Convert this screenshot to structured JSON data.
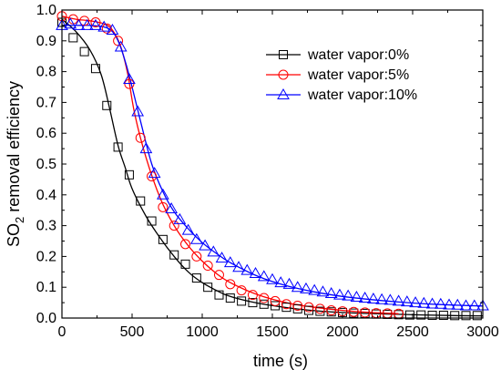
{
  "chart_data": {
    "type": "line",
    "xlabel": "time (s)",
    "ylabel_main": "SO",
    "ylabel_sub": "2",
    "ylabel_rest": " removal efficiency",
    "xlim": [
      0,
      3000
    ],
    "ylim": [
      0.0,
      1.0
    ],
    "xticks": [
      0,
      500,
      1000,
      1500,
      2000,
      2500,
      3000
    ],
    "yticks": [
      0.0,
      0.1,
      0.2,
      0.3,
      0.4,
      0.5,
      0.6,
      0.7,
      0.8,
      0.9,
      1.0
    ],
    "ytick_labels": [
      "0.0",
      "0.1",
      "0.2",
      "0.3",
      "0.4",
      "0.5",
      "0.6",
      "0.7",
      "0.8",
      "0.9",
      "1.0"
    ],
    "legend_position": "top-right",
    "series": [
      {
        "name": "water vapor:0%",
        "color": "#000000",
        "marker": "square",
        "x": [
          0,
          80,
          160,
          240,
          320,
          400,
          480,
          560,
          640,
          720,
          800,
          880,
          960,
          1040,
          1120,
          1200,
          1280,
          1360,
          1440,
          1520,
          1600,
          1680,
          1760,
          1840,
          1920,
          2000,
          2080,
          2160,
          2240,
          2320,
          2400,
          2480,
          2560,
          2640,
          2720,
          2800,
          2880,
          2960
        ],
        "y": [
          0.96,
          0.91,
          0.865,
          0.81,
          0.69,
          0.555,
          0.465,
          0.38,
          0.315,
          0.255,
          0.205,
          0.175,
          0.13,
          0.1,
          0.075,
          0.065,
          0.055,
          0.05,
          0.045,
          0.04,
          0.035,
          0.03,
          0.025,
          0.022,
          0.02,
          0.018,
          0.016,
          0.015,
          0.013,
          0.012,
          0.011,
          0.01,
          0.01,
          0.009,
          0.009,
          0.008,
          0.008,
          0.008
        ],
        "curve_x": [
          0,
          100,
          200,
          280,
          340,
          400,
          450,
          500,
          600,
          700,
          800,
          900,
          1000,
          1100,
          1200,
          1400,
          1600,
          1800,
          2000,
          2400,
          2800,
          3000
        ],
        "curve_y": [
          0.97,
          0.93,
          0.87,
          0.79,
          0.68,
          0.56,
          0.49,
          0.42,
          0.33,
          0.26,
          0.2,
          0.15,
          0.115,
          0.09,
          0.07,
          0.048,
          0.034,
          0.024,
          0.018,
          0.012,
          0.008,
          0.007
        ]
      },
      {
        "name": "water vapor:5%",
        "color": "#ff0000",
        "marker": "circle",
        "x": [
          0,
          80,
          160,
          240,
          320,
          400,
          480,
          560,
          640,
          720,
          800,
          880,
          960,
          1040,
          1120,
          1200,
          1280,
          1360,
          1440,
          1520,
          1600,
          1680,
          1760,
          1840,
          1920,
          2000,
          2080,
          2160,
          2240,
          2320,
          2400
        ],
        "y": [
          0.98,
          0.97,
          0.965,
          0.96,
          0.94,
          0.9,
          0.76,
          0.585,
          0.46,
          0.36,
          0.3,
          0.24,
          0.2,
          0.17,
          0.14,
          0.11,
          0.09,
          0.075,
          0.065,
          0.055,
          0.045,
          0.04,
          0.035,
          0.03,
          0.025,
          0.022,
          0.02,
          0.018,
          0.016,
          0.015,
          0.014
        ],
        "curve_x": [
          0,
          100,
          200,
          300,
          360,
          420,
          470,
          520,
          600,
          700,
          800,
          900,
          1000,
          1100,
          1200,
          1400,
          1600,
          1800,
          2000,
          2200,
          2400
        ],
        "curve_y": [
          0.98,
          0.97,
          0.965,
          0.955,
          0.935,
          0.88,
          0.79,
          0.66,
          0.52,
          0.39,
          0.3,
          0.235,
          0.185,
          0.145,
          0.115,
          0.075,
          0.05,
          0.035,
          0.025,
          0.018,
          0.014
        ]
      },
      {
        "name": "water vapor:10%",
        "color": "#0000ff",
        "marker": "triangle",
        "x": [
          0,
          60,
          120,
          180,
          240,
          300,
          360,
          420,
          480,
          540,
          600,
          660,
          720,
          780,
          840,
          900,
          960,
          1020,
          1080,
          1140,
          1200,
          1260,
          1320,
          1380,
          1440,
          1500,
          1560,
          1620,
          1680,
          1740,
          1800,
          1860,
          1920,
          1980,
          2040,
          2100,
          2160,
          2220,
          2280,
          2340,
          2400,
          2460,
          2520,
          2580,
          2640,
          2700,
          2760,
          2820,
          2880,
          2940,
          3000
        ],
        "y": [
          0.95,
          0.955,
          0.95,
          0.95,
          0.95,
          0.945,
          0.935,
          0.88,
          0.775,
          0.67,
          0.55,
          0.47,
          0.4,
          0.355,
          0.32,
          0.285,
          0.255,
          0.235,
          0.215,
          0.195,
          0.18,
          0.165,
          0.155,
          0.145,
          0.135,
          0.125,
          0.115,
          0.11,
          0.1,
          0.095,
          0.09,
          0.085,
          0.08,
          0.075,
          0.072,
          0.068,
          0.065,
          0.062,
          0.06,
          0.058,
          0.055,
          0.053,
          0.05,
          0.048,
          0.046,
          0.045,
          0.043,
          0.042,
          0.04,
          0.04,
          0.04
        ],
        "curve_x": [
          0,
          100,
          200,
          300,
          360,
          410,
          460,
          500,
          560,
          640,
          720,
          800,
          900,
          1000,
          1100,
          1200,
          1400,
          1600,
          1800,
          2000,
          2200,
          2400,
          2600,
          2800,
          3000
        ],
        "curve_y": [
          0.95,
          0.95,
          0.95,
          0.945,
          0.93,
          0.89,
          0.82,
          0.75,
          0.64,
          0.5,
          0.41,
          0.345,
          0.29,
          0.245,
          0.21,
          0.18,
          0.135,
          0.105,
          0.085,
          0.07,
          0.06,
          0.052,
          0.046,
          0.042,
          0.039
        ]
      }
    ]
  }
}
